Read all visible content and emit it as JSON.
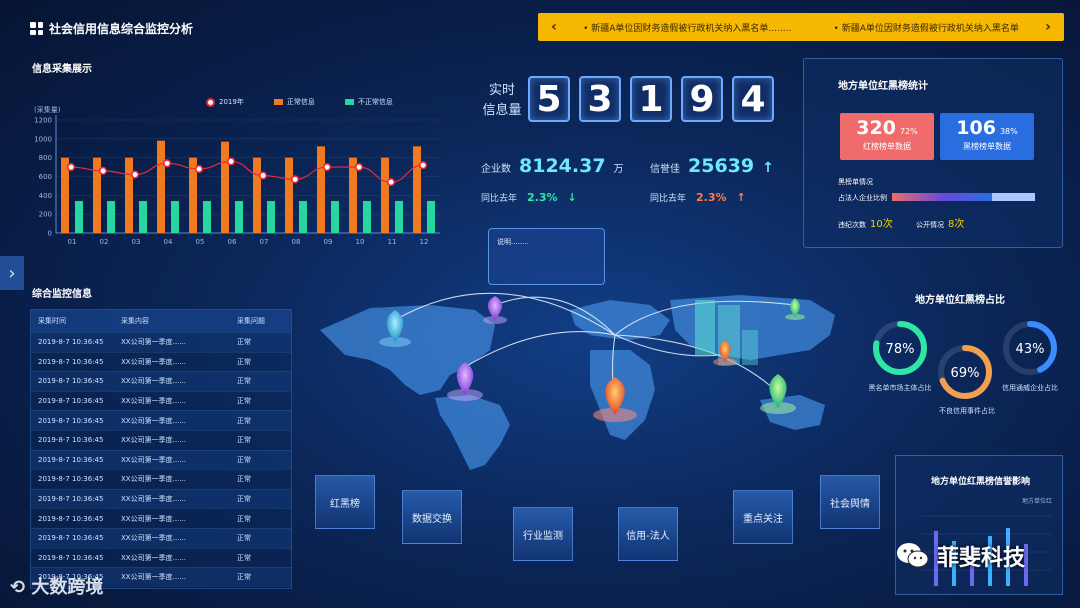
{
  "app": {
    "title": "社会信用信息综合监控分析"
  },
  "ticker": {
    "messages": [
      "• 新疆A单位因财务造假被行政机关纳入黑名单........",
      "• 新疆A单位因财务造假被行政机关纳入黑名单"
    ],
    "prev_icon": "chevron-left-icon",
    "next_icon": "chevron-right-icon"
  },
  "info_collection": {
    "section_title": "信息采集展示",
    "legend": {
      "line": "2019年",
      "orange": "正常信息",
      "green": "不正常信息"
    }
  },
  "chart_data": {
    "type": "bar",
    "ylabel": "(采集量)",
    "ylim": [
      0,
      1200
    ],
    "yticks": [
      0,
      200,
      400,
      600,
      800,
      1000,
      1200
    ],
    "categories": [
      "01",
      "02",
      "03",
      "04",
      "05",
      "06",
      "07",
      "08",
      "09",
      "10",
      "11",
      "12"
    ],
    "series": [
      {
        "name": "正常信息",
        "type": "bar",
        "color": "#f07a1f",
        "values": [
          800,
          800,
          800,
          980,
          800,
          970,
          800,
          800,
          920,
          800,
          800,
          920
        ]
      },
      {
        "name": "不正常信息",
        "type": "bar",
        "color": "#27d7a0",
        "values": [
          340,
          340,
          340,
          340,
          340,
          340,
          340,
          340,
          340,
          340,
          340,
          340
        ]
      },
      {
        "name": "2019年",
        "type": "line",
        "color": "#e8283d",
        "values": [
          700,
          660,
          620,
          740,
          680,
          760,
          610,
          570,
          700,
          700,
          540,
          720
        ]
      }
    ],
    "grid": true,
    "legend": "top"
  },
  "monitor": {
    "section_title": "综合监控信息",
    "columns": [
      "采集时间",
      "采集内容",
      "采集问题"
    ],
    "rows": [
      [
        "2019-8-7 10:36:45",
        "XX公司第一季度......",
        "正常"
      ],
      [
        "2019-8-7 10:36:45",
        "XX公司第一季度......",
        "正常"
      ],
      [
        "2019-8-7 10:36:45",
        "XX公司第一季度......",
        "正常"
      ],
      [
        "2019-8-7 10:36:45",
        "XX公司第一季度......",
        "正常"
      ],
      [
        "2019-8-7 10:36:45",
        "XX公司第一季度......",
        "正常"
      ],
      [
        "2019-8-7 10:36:45",
        "XX公司第一季度......",
        "正常"
      ],
      [
        "2019-8-7 10:36:45",
        "XX公司第一季度......",
        "正常"
      ],
      [
        "2019-8-7 10:36:45",
        "XX公司第一季度......",
        "正常"
      ],
      [
        "2019-8-7 10:36:45",
        "XX公司第一季度......",
        "正常"
      ],
      [
        "2019-8-7 10:36:45",
        "XX公司第一季度......",
        "正常"
      ],
      [
        "2019-8-7 10:36:45",
        "XX公司第一季度......",
        "正常"
      ],
      [
        "2019-8-7 10:36:45",
        "XX公司第一季度......",
        "正常"
      ],
      [
        "2019-8-7 10:36:45",
        "XX公司第一季度......",
        "正常"
      ]
    ]
  },
  "realtime": {
    "label_line1": "实时",
    "label_line2": "信息量",
    "digits": [
      "5",
      "3",
      "1",
      "9",
      "4"
    ]
  },
  "stats": {
    "company_label": "企业数",
    "company_value": "8124.37",
    "company_unit": "万",
    "credit_label": "信誉佳",
    "credit_value": "25639",
    "credit_arrow": "↑",
    "yoy_label_1": "同比去年",
    "yoy_value_1": "2.3%",
    "yoy_arrow_1": "↓",
    "yoy_label_2": "同比去年",
    "yoy_value_2": "2.3%",
    "yoy_arrow_2": "↑"
  },
  "note": {
    "text": "说明........"
  },
  "redblack": {
    "title": "地方单位红黑榜统计",
    "red": {
      "count": "320",
      "pct": "72%",
      "label": "红榜榜单数据",
      "color": "#f06b6b"
    },
    "black": {
      "count": "106",
      "pct": "38%",
      "label": "黑榜榜单数据",
      "color": "#2a6de0"
    },
    "black_status_label": "黑榜单情况",
    "legal_ratio_label": "占法人企业比例",
    "legal_ratio": 0.7,
    "violation_label": "违纪次数",
    "violation_value": "10次",
    "public_label": "公开情况",
    "public_value": "8次"
  },
  "ratios": {
    "title": "地方单位红黑榜占比",
    "items": [
      {
        "pct": "78%",
        "value": 0.78,
        "label": "黑名单市场主体占比",
        "color": "#2ee6a6"
      },
      {
        "pct": "69%",
        "value": 0.69,
        "label": "不良信用事件占比",
        "color": "#f0a050"
      },
      {
        "pct": "43%",
        "value": 0.43,
        "label": "信用通威企业占比",
        "color": "#3a8cff"
      }
    ]
  },
  "influence": {
    "title": "地方单位红黑榜信誉影响",
    "legend": "地方单位红"
  },
  "nav": {
    "tiles": [
      "红黑榜",
      "数据交换",
      "行业监测",
      "信用-法人",
      "重点关注",
      "社会舆情"
    ]
  },
  "watermarks": {
    "left": "大数跨境",
    "right": "菲斐科技"
  }
}
